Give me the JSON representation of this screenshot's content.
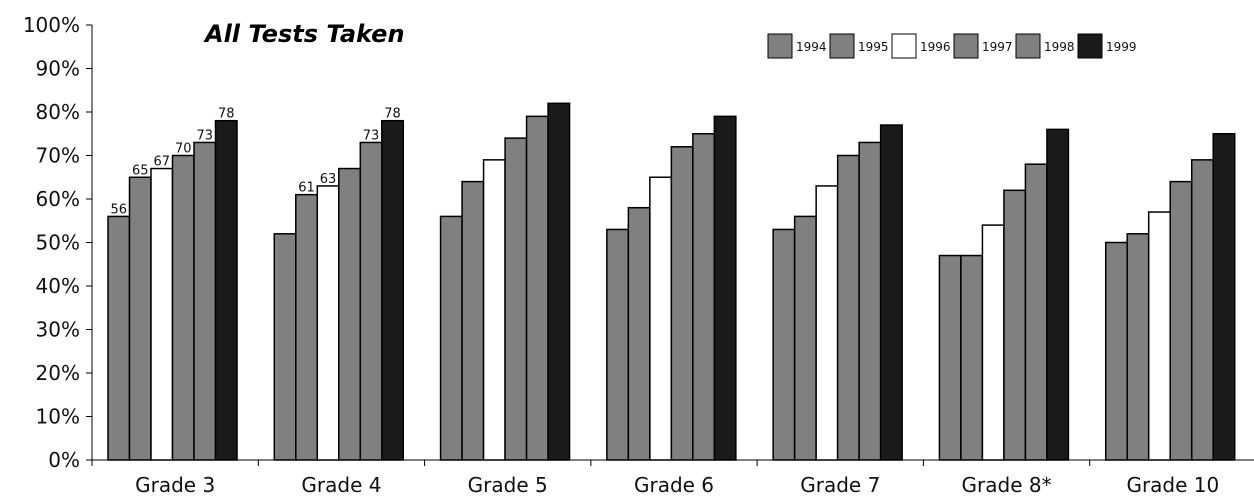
{
  "chart_data": {
    "type": "bar",
    "title": "All Tests Taken",
    "xlabel": "",
    "ylabel": "",
    "ylim": [
      0,
      100
    ],
    "y_ticks": [
      "0%",
      "10%",
      "20%",
      "30%",
      "40%",
      "50%",
      "60%",
      "70%",
      "80%",
      "90%",
      "100%"
    ],
    "grid": false,
    "legend_position": "top-right",
    "categories": [
      "Grade 3",
      "Grade 4",
      "Grade 5",
      "Grade 6",
      "Grade 7",
      "Grade 8*",
      "Grade 10"
    ],
    "series": [
      {
        "name": "1994",
        "color": "#808080",
        "values": [
          56,
          52,
          56,
          53,
          53,
          47,
          50
        ],
        "labels": [
          "56",
          "",
          "",
          "",
          "",
          "",
          ""
        ]
      },
      {
        "name": "1995",
        "color": "#808080",
        "values": [
          65,
          61,
          64,
          58,
          56,
          47,
          52
        ],
        "labels": [
          "65",
          "61",
          "",
          "",
          "",
          "",
          ""
        ]
      },
      {
        "name": "1996",
        "color": "#808080",
        "values": [
          67,
          63,
          69,
          65,
          63,
          54,
          57
        ],
        "labels": [
          "67",
          "63",
          "",
          "",
          "",
          "",
          ""
        ]
      },
      {
        "name": "1997",
        "color": "#808080",
        "values": [
          70,
          67,
          74,
          72,
          70,
          62,
          64
        ],
        "labels": [
          "70",
          "",
          "",
          "",
          "",
          "",
          ""
        ]
      },
      {
        "name": "1998",
        "color": "#808080",
        "values": [
          73,
          73,
          79,
          75,
          73,
          68,
          69
        ],
        "labels": [
          "73",
          "73",
          "",
          "",
          "",
          "",
          ""
        ]
      },
      {
        "name": "1999",
        "color": "#1a1a1a",
        "values": [
          78,
          78,
          82,
          79,
          77,
          76,
          75
        ],
        "labels": [
          "78",
          "78",
          "",
          "",
          "",
          "",
          ""
        ]
      }
    ],
    "bar_fill_overrides": {
      "1996": "#ffffff"
    }
  }
}
